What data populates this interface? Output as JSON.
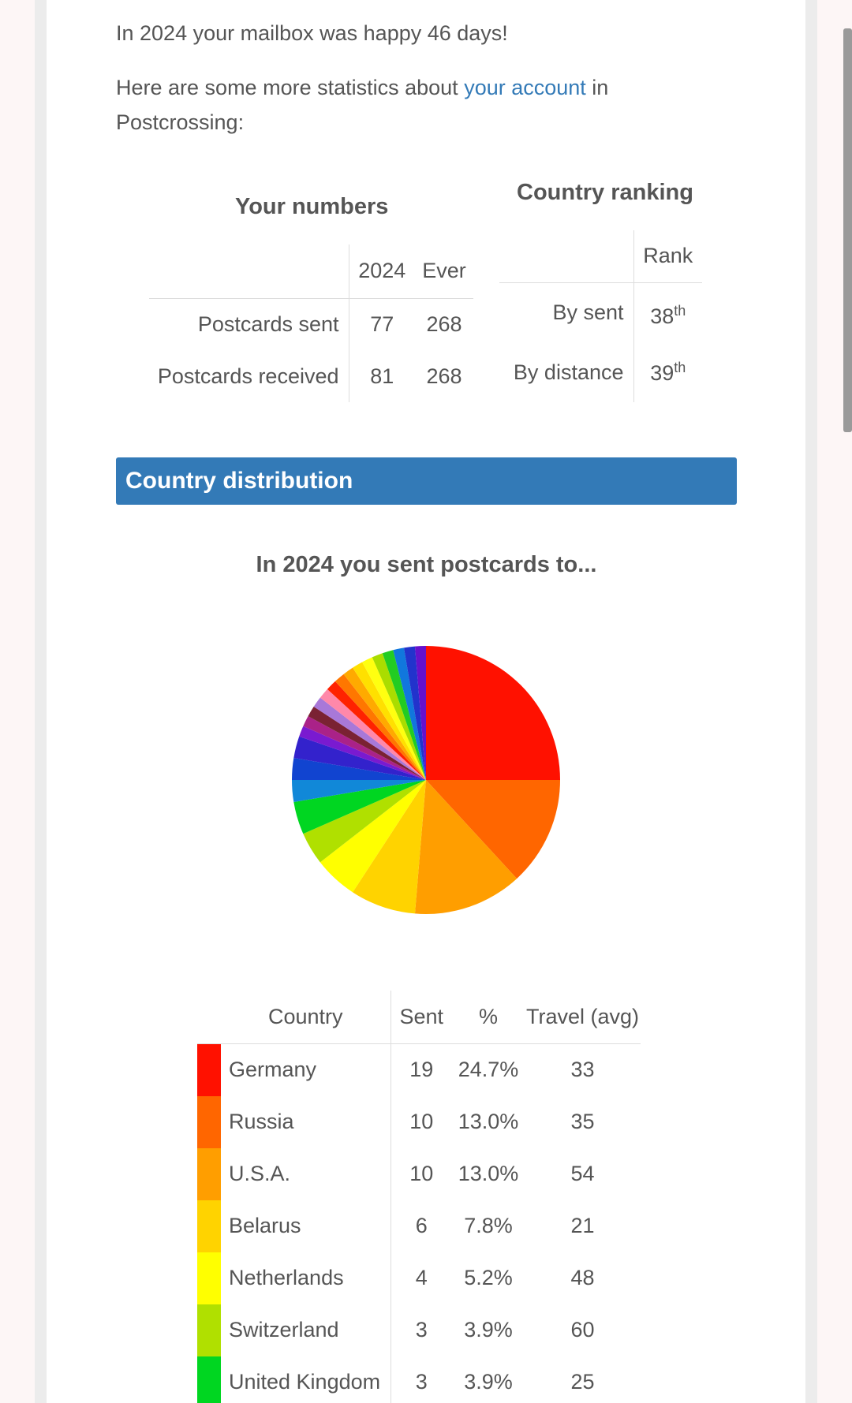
{
  "intro": {
    "line1": "In 2024 your mailbox was happy 46 days!",
    "line2_pre": "Here are some more statistics about ",
    "line2_link": "your account",
    "line2_post": " in Postcrossing:"
  },
  "your_numbers": {
    "title": "Your numbers",
    "col_2024": "2024",
    "col_ever": "Ever",
    "rows": [
      {
        "label": "Postcards sent",
        "y2024": "77",
        "ever": "268"
      },
      {
        "label": "Postcards received",
        "y2024": "81",
        "ever": "268"
      }
    ]
  },
  "country_ranking": {
    "title": "Country ranking",
    "col_rank": "Rank",
    "rows": [
      {
        "label": "By sent",
        "rank": "38",
        "suffix": "th"
      },
      {
        "label": "By distance",
        "rank": "39",
        "suffix": "th"
      }
    ]
  },
  "section": {
    "title": "Country distribution"
  },
  "chart_title": "In 2024 you sent postcards to...",
  "chart_data": {
    "type": "pie",
    "title": "In 2024 you sent postcards to...",
    "slices": [
      {
        "label": "Germany",
        "value": 19,
        "color": "#ff1100"
      },
      {
        "label": "Russia",
        "value": 10,
        "color": "#ff6600"
      },
      {
        "label": "U.S.A.",
        "value": 10,
        "color": "#ff9e00"
      },
      {
        "label": "Belarus",
        "value": 6,
        "color": "#ffd300"
      },
      {
        "label": "Netherlands",
        "value": 4,
        "color": "#ffff00"
      },
      {
        "label": "Switzerland",
        "value": 3,
        "color": "#b0e000"
      },
      {
        "label": "United Kingdom",
        "value": 3,
        "color": "#00d621"
      },
      {
        "value": 2,
        "color": "#1188d8"
      },
      {
        "value": 2,
        "color": "#1144d0"
      },
      {
        "value": 2,
        "color": "#3322cc"
      },
      {
        "value": 1,
        "color": "#7a1ad0"
      },
      {
        "value": 1,
        "color": "#aa2288"
      },
      {
        "value": 1,
        "color": "#7a2233"
      },
      {
        "value": 1,
        "color": "#a878d8"
      },
      {
        "value": 1,
        "color": "#ff88aa"
      },
      {
        "value": 1,
        "color": "#ff2200"
      },
      {
        "value": 1,
        "color": "#ff7700"
      },
      {
        "value": 1,
        "color": "#ffaa00"
      },
      {
        "value": 1,
        "color": "#ffe000"
      },
      {
        "value": 1,
        "color": "#ffff10"
      },
      {
        "value": 1,
        "color": "#aadd00"
      },
      {
        "value": 1,
        "color": "#22cc22"
      },
      {
        "value": 1,
        "color": "#1177dd"
      },
      {
        "value": 1,
        "color": "#2233cc"
      },
      {
        "value": 1,
        "color": "#6611cc"
      }
    ]
  },
  "country_table": {
    "headers": {
      "country": "Country",
      "sent": "Sent",
      "pct": "%",
      "travel": "Travel (avg)"
    },
    "rows": [
      {
        "country": "Germany",
        "sent": "19",
        "pct": "24.7%",
        "travel": "33",
        "color": "#ff1100"
      },
      {
        "country": "Russia",
        "sent": "10",
        "pct": "13.0%",
        "travel": "35",
        "color": "#ff6600"
      },
      {
        "country": "U.S.A.",
        "sent": "10",
        "pct": "13.0%",
        "travel": "54",
        "color": "#ff9e00"
      },
      {
        "country": "Belarus",
        "sent": "6",
        "pct": "7.8%",
        "travel": "21",
        "color": "#ffd300"
      },
      {
        "country": "Netherlands",
        "sent": "4",
        "pct": "5.2%",
        "travel": "48",
        "color": "#ffff00"
      },
      {
        "country": "Switzerland",
        "sent": "3",
        "pct": "3.9%",
        "travel": "60",
        "color": "#b0e000"
      },
      {
        "country": "United Kingdom",
        "sent": "3",
        "pct": "3.9%",
        "travel": "25",
        "color": "#00d621"
      }
    ]
  }
}
